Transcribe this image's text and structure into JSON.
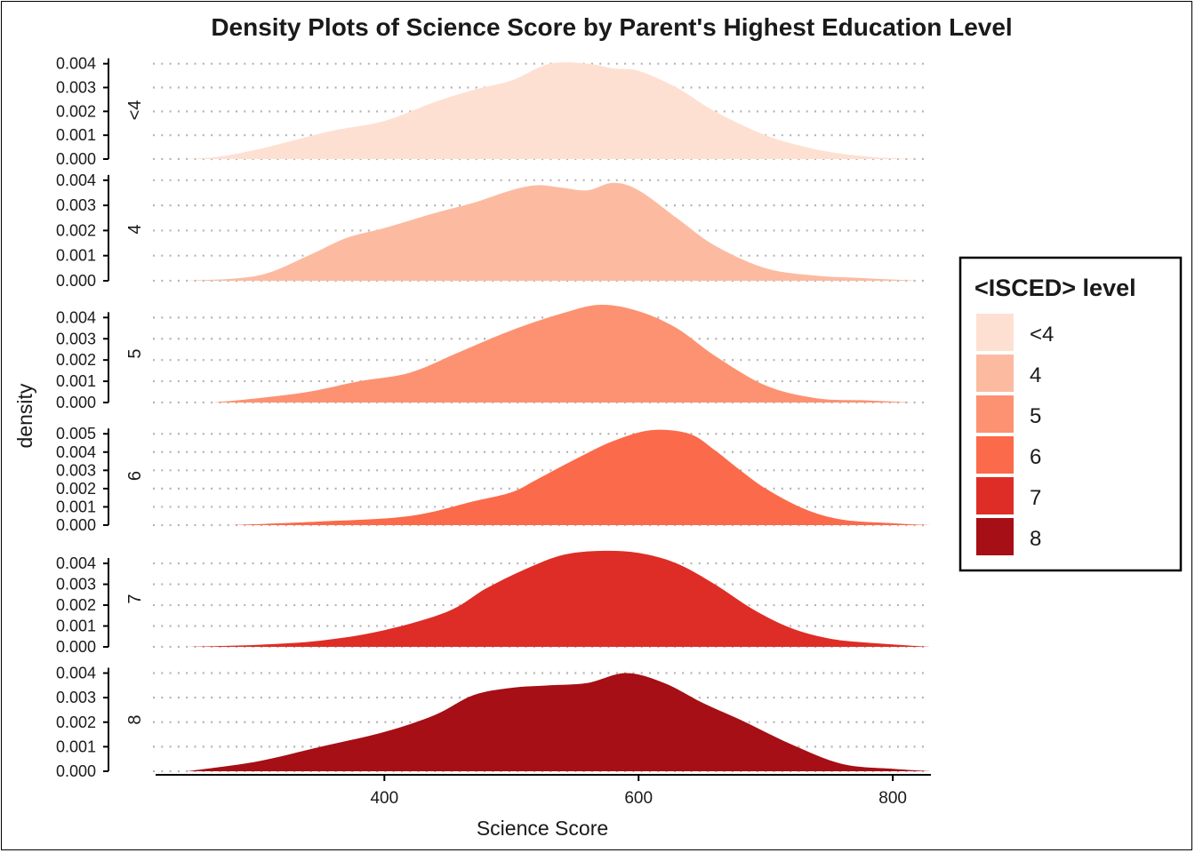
{
  "chart_data": {
    "type": "area",
    "title": "Density Plots of Science Score by Parent's Highest Education Level",
    "xlabel": "Science Score",
    "ylabel": "density",
    "xlim": [
      220,
      830
    ],
    "x_ticks": [
      400,
      600,
      800
    ],
    "x_tick_labels": [
      "400",
      "600",
      "800"
    ],
    "grid": "horizontal dotted",
    "legend": {
      "title": "<ISCED> level",
      "position": "right",
      "items": [
        {
          "label": "<4",
          "color": "#FEE0D2"
        },
        {
          "label": "4",
          "color": "#FCBBA1"
        },
        {
          "label": "5",
          "color": "#FC9272"
        },
        {
          "label": "6",
          "color": "#FB6A4A"
        },
        {
          "label": "7",
          "color": "#DE2D26"
        },
        {
          "label": "8",
          "color": "#A50F15"
        }
      ]
    },
    "panels": [
      {
        "label": "<4",
        "color": "#FEE0D2",
        "ymax": 0.0041,
        "yticks": [
          0.0,
          0.001,
          0.002,
          0.003,
          0.004
        ],
        "ytick_labels": [
          "0.000",
          "0.001",
          "0.002",
          "0.003",
          "0.004"
        ],
        "x": [
          245,
          270,
          300,
          330,
          360,
          400,
          440,
          470,
          500,
          530,
          560,
          580,
          600,
          630,
          660,
          700,
          740,
          780,
          820
        ],
        "y": [
          0.0,
          0.0001,
          0.0004,
          0.0008,
          0.0012,
          0.0016,
          0.0024,
          0.0029,
          0.0033,
          0.004,
          0.004,
          0.0038,
          0.0037,
          0.003,
          0.002,
          0.001,
          0.0004,
          0.0001,
          0.0
        ]
      },
      {
        "label": "4",
        "color": "#FCBBA1",
        "ymax": 0.0041,
        "yticks": [
          0.0,
          0.001,
          0.002,
          0.003,
          0.004
        ],
        "ytick_labels": [
          "0.000",
          "0.001",
          "0.002",
          "0.003",
          "0.004"
        ],
        "x": [
          245,
          300,
          340,
          370,
          400,
          440,
          470,
          500,
          520,
          540,
          560,
          580,
          600,
          630,
          660,
          700,
          740,
          780,
          820
        ],
        "y": [
          0.0,
          0.0002,
          0.001,
          0.0017,
          0.0021,
          0.0027,
          0.0031,
          0.0036,
          0.0038,
          0.0037,
          0.0036,
          0.0039,
          0.0036,
          0.0025,
          0.0014,
          0.0005,
          0.0002,
          0.0001,
          0.0
        ]
      },
      {
        "label": "5",
        "color": "#FC9272",
        "ymax": 0.0046,
        "yticks": [
          0.0,
          0.001,
          0.002,
          0.003,
          0.004
        ],
        "ytick_labels": [
          "0.000",
          "0.001",
          "0.002",
          "0.003",
          "0.004"
        ],
        "x": [
          265,
          300,
          340,
          380,
          420,
          460,
          500,
          540,
          570,
          600,
          630,
          660,
          700,
          740,
          780,
          815
        ],
        "y": [
          0.0,
          0.0002,
          0.0005,
          0.001,
          0.0014,
          0.0024,
          0.0034,
          0.0042,
          0.0046,
          0.0043,
          0.0035,
          0.0022,
          0.0008,
          0.0002,
          0.0001,
          0.0
        ]
      },
      {
        "label": "6",
        "color": "#FB6A4A",
        "ymax": 0.0054,
        "yticks": [
          0.0,
          0.001,
          0.002,
          0.003,
          0.004,
          0.005
        ],
        "ytick_labels": [
          "0.000",
          "0.001",
          "0.002",
          "0.003",
          "0.004",
          "0.005"
        ],
        "x": [
          280,
          350,
          420,
          470,
          500,
          520,
          550,
          580,
          610,
          640,
          660,
          680,
          700,
          730,
          760,
          800,
          830
        ],
        "y": [
          0.0,
          0.0002,
          0.0005,
          0.0013,
          0.0018,
          0.0025,
          0.0036,
          0.0046,
          0.0052,
          0.005,
          0.0041,
          0.003,
          0.002,
          0.0009,
          0.0003,
          0.0001,
          0.0
        ]
      },
      {
        "label": "7",
        "color": "#DE2D26",
        "ymax": 0.0046,
        "yticks": [
          0.0,
          0.001,
          0.002,
          0.003,
          0.004
        ],
        "ytick_labels": [
          "0.000",
          "0.001",
          "0.002",
          "0.003",
          "0.004"
        ],
        "x": [
          245,
          300,
          350,
          400,
          450,
          480,
          510,
          540,
          570,
          600,
          630,
          660,
          690,
          720,
          750,
          780,
          830
        ],
        "y": [
          0.0,
          0.0001,
          0.0003,
          0.0008,
          0.0017,
          0.0028,
          0.0037,
          0.0044,
          0.0046,
          0.0045,
          0.004,
          0.003,
          0.0018,
          0.0009,
          0.0004,
          0.0002,
          0.0
        ]
      },
      {
        "label": "8",
        "color": "#A50F15",
        "ymax": 0.0042,
        "yticks": [
          0.0,
          0.001,
          0.002,
          0.003,
          0.004
        ],
        "ytick_labels": [
          "0.000",
          "0.001",
          "0.002",
          "0.003",
          "0.004"
        ],
        "x": [
          245,
          300,
          350,
          400,
          440,
          470,
          500,
          530,
          560,
          590,
          620,
          650,
          680,
          720,
          760,
          800,
          830
        ],
        "y": [
          0.0,
          0.0004,
          0.001,
          0.0016,
          0.0023,
          0.0031,
          0.0034,
          0.0035,
          0.0036,
          0.004,
          0.0036,
          0.0028,
          0.0021,
          0.0011,
          0.0003,
          0.0001,
          0.0
        ]
      }
    ]
  }
}
